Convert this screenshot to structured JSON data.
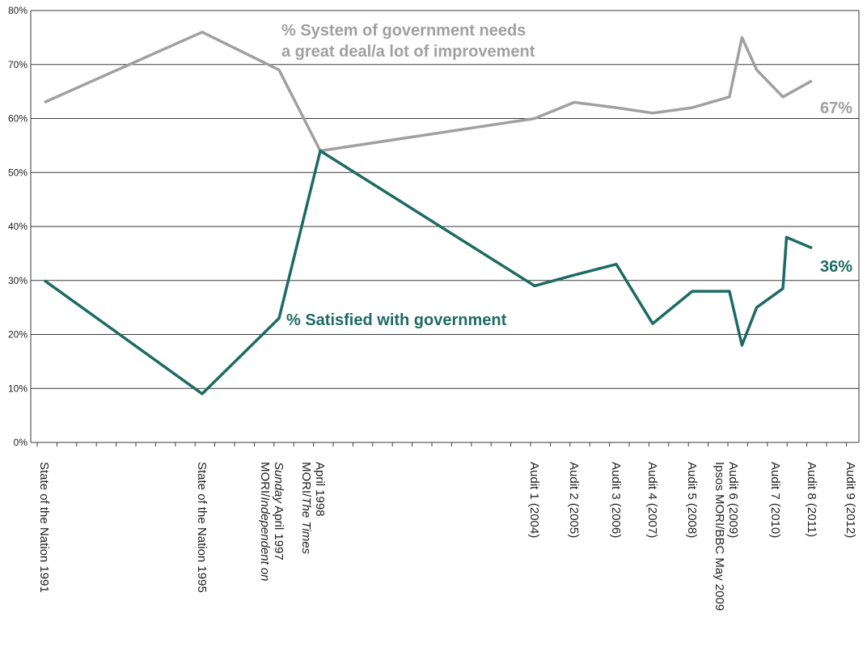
{
  "chart_data": {
    "type": "line",
    "ylim": [
      0,
      80
    ],
    "y_ticks": [
      "0%",
      "10%",
      "20%",
      "30%",
      "40%",
      "50%",
      "60%",
      "70%",
      "80%"
    ],
    "grid": true,
    "x": [
      {
        "lines": [
          {
            "text": "State of the Nation 1991"
          }
        ]
      },
      {
        "lines": [
          {
            "text": "State of the Nation 1995"
          }
        ]
      },
      {
        "lines": [
          {
            "text": "MORI/Independent on",
            "italic_part": "Independent on"
          },
          {
            "text": "Sunday April 1997",
            "italic_part": "Sunday"
          }
        ]
      },
      {
        "lines": [
          {
            "text": "MORI/The Times",
            "italic_part": "The Times"
          },
          {
            "text": "April 1998"
          }
        ]
      },
      {
        "lines": [
          {
            "text": "Audit 1 (2004)"
          }
        ]
      },
      {
        "lines": [
          {
            "text": "Audit 2 (2005)"
          }
        ]
      },
      {
        "lines": [
          {
            "text": "Audit 3 (2006)"
          }
        ]
      },
      {
        "lines": [
          {
            "text": "Audit 4 (2007)"
          }
        ]
      },
      {
        "lines": [
          {
            "text": "Audit 5 (2008)"
          }
        ]
      },
      {
        "lines": [
          {
            "text": "Ipsos MORI/BBC May 2009"
          },
          {
            "text": "Audit 6 (2009)"
          }
        ]
      },
      {
        "lines": [
          {
            "text": "Audit 7 (2010)"
          }
        ]
      },
      {
        "lines": [
          {
            "text": "Audit 8 (2011)"
          }
        ]
      },
      {
        "lines": [
          {
            "text": "Audit 9 (2012)"
          }
        ]
      }
    ],
    "series": [
      {
        "name": "% System of government needs a great deal/a lot of improvement",
        "label_lines": [
          "% System of government needs",
          "a great deal/a lot of improvement"
        ],
        "color": "#a0a0a0",
        "points": [
          [
            0,
            63
          ],
          [
            1,
            76
          ],
          [
            2,
            69
          ],
          [
            3,
            54
          ],
          [
            4,
            60
          ],
          [
            5,
            63
          ],
          [
            6,
            62
          ],
          [
            7,
            61
          ],
          [
            8,
            62
          ],
          [
            8.9,
            64
          ],
          [
            9.2,
            75
          ],
          [
            9.55,
            69
          ],
          [
            10.2,
            64
          ],
          [
            11,
            67
          ]
        ],
        "end_label": "67%"
      },
      {
        "name": "% Satisfied with government",
        "label_lines": [
          "% Satisfied with government"
        ],
        "color": "#1d6b63",
        "points": [
          [
            0,
            30
          ],
          [
            1,
            9
          ],
          [
            2,
            23
          ],
          [
            3,
            54
          ],
          [
            4,
            29
          ],
          [
            5,
            31
          ],
          [
            6,
            33
          ],
          [
            7,
            22
          ],
          [
            8,
            28
          ],
          [
            8.9,
            28
          ],
          [
            9.2,
            18
          ],
          [
            9.55,
            25
          ],
          [
            10.2,
            28.5
          ],
          [
            10.3,
            38
          ],
          [
            11,
            36
          ]
        ],
        "end_label": "36%"
      }
    ]
  }
}
